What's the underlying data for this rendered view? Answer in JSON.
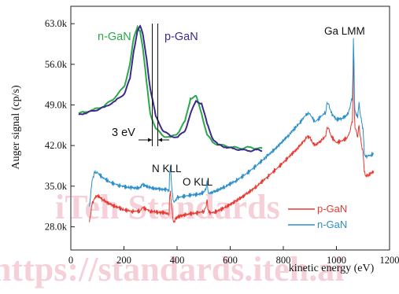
{
  "chart_data": {
    "type": "line",
    "xlabel": "kinetic energy (eV)",
    "ylabel": "Auger signal (cp/s)",
    "xlim": [
      0,
      1200
    ],
    "ylim": [
      24000,
      66000
    ],
    "x_ticks": [
      "0",
      "200",
      "400",
      "600",
      "800",
      "1000",
      "1200"
    ],
    "y_ticks": [
      "28.0k",
      "35.0k",
      "42.0k",
      "49.0k",
      "56.0k",
      "63.0k"
    ],
    "peak_labels": [
      "N KLL",
      "O KLL",
      "Ga LMM"
    ],
    "series": [
      {
        "name": "p-GaN",
        "color": "#e8382f",
        "x": [
          70,
          80,
          90,
          100,
          120,
          150,
          180,
          200,
          230,
          260,
          270,
          300,
          330,
          360,
          370,
          372,
          375,
          380,
          385,
          390,
          392,
          395,
          400,
          440,
          480,
          500,
          510,
          513,
          516,
          520,
          540,
          580,
          620,
          660,
          700,
          740,
          780,
          820,
          860,
          880,
          890,
          900,
          910,
          920,
          940,
          960,
          965,
          970,
          980,
          1000,
          1020,
          1040,
          1050,
          1055,
          1060,
          1062,
          1064,
          1066,
          1068,
          1070,
          1075,
          1080,
          1085,
          1090,
          1095,
          1100,
          1105,
          1110,
          1120,
          1130,
          1140
        ],
        "y": [
          28800,
          31800,
          33000,
          33400,
          32700,
          31800,
          31300,
          30900,
          30700,
          30700,
          31300,
          30700,
          30500,
          30400,
          30200,
          33200,
          34200,
          31200,
          29200,
          29000,
          29100,
          29400,
          29700,
          30200,
          30400,
          30700,
          31500,
          32700,
          31000,
          30400,
          30500,
          31300,
          32400,
          33600,
          35000,
          36600,
          38200,
          40000,
          41800,
          43000,
          43500,
          43400,
          42500,
          42000,
          42800,
          43600,
          45200,
          45000,
          43600,
          42500,
          42800,
          43300,
          44300,
          45500,
          45900,
          50000,
          59000,
          54000,
          47000,
          45000,
          44500,
          43500,
          45500,
          43500,
          42000,
          41000,
          37500,
          36800,
          36900,
          37200,
          37600
        ]
      },
      {
        "name": "n-GaN",
        "color": "#2a8ec9",
        "x": [
          70,
          80,
          90,
          100,
          120,
          150,
          180,
          200,
          230,
          260,
          270,
          300,
          330,
          360,
          370,
          372,
          375,
          380,
          385,
          390,
          392,
          395,
          400,
          440,
          480,
          500,
          510,
          513,
          516,
          520,
          540,
          580,
          620,
          660,
          700,
          740,
          780,
          820,
          860,
          880,
          890,
          900,
          910,
          920,
          940,
          960,
          965,
          970,
          980,
          1000,
          1020,
          1040,
          1050,
          1055,
          1060,
          1062,
          1064,
          1066,
          1068,
          1070,
          1075,
          1080,
          1085,
          1090,
          1095,
          1100,
          1105,
          1110,
          1120,
          1130,
          1140
        ],
        "y": [
          31500,
          36000,
          37300,
          37300,
          36500,
          35600,
          35200,
          34900,
          34700,
          34700,
          35300,
          34700,
          34500,
          34400,
          34200,
          37300,
          38500,
          34800,
          32600,
          32300,
          32400,
          32700,
          33000,
          33400,
          33600,
          33900,
          34700,
          36000,
          34400,
          33800,
          34000,
          34900,
          35900,
          37100,
          38600,
          40200,
          41900,
          43800,
          45800,
          47000,
          47600,
          47500,
          46600,
          46100,
          46900,
          47800,
          49400,
          49200,
          47600,
          46500,
          46700,
          47200,
          48300,
          49500,
          50300,
          54000,
          60500,
          56500,
          50000,
          48000,
          47500,
          46700,
          49500,
          47300,
          46000,
          45000,
          40700,
          40000,
          40200,
          40400,
          40600
        ]
      }
    ],
    "legend": {
      "position": "bottom-right",
      "entries": [
        {
          "name": "p-GaN",
          "color": "#e8382f"
        },
        {
          "name": "n-GaN",
          "color": "#2a8ec9"
        }
      ]
    },
    "inset": {
      "labels": {
        "n": "n-GaN",
        "p": "p-GaN",
        "width": "3 eV",
        "colors": {
          "n": "#2aa84a",
          "p": "#3c2a8c"
        }
      },
      "series": [
        {
          "name": "n-GaN",
          "color": "#2aa84a",
          "x": [
            0,
            0.03,
            0.08,
            0.14,
            0.2,
            0.25,
            0.28,
            0.3,
            0.32,
            0.335,
            0.35,
            0.37,
            0.39,
            0.42,
            0.46,
            0.5,
            0.54,
            0.58,
            0.61,
            0.64,
            0.67,
            0.7,
            0.73,
            0.76,
            0.8,
            0.84,
            0.88,
            0.93,
            0.97,
            1.0
          ],
          "y": [
            0.3,
            0.31,
            0.33,
            0.36,
            0.43,
            0.52,
            0.7,
            0.9,
            0.99,
            0.96,
            0.82,
            0.55,
            0.3,
            0.18,
            0.12,
            0.11,
            0.14,
            0.24,
            0.42,
            0.44,
            0.3,
            0.13,
            0.07,
            0.05,
            0.04,
            0.03,
            0.02,
            0.03,
            0.02,
            0.02
          ]
        },
        {
          "name": "p-GaN",
          "color": "#3c2a8c",
          "x": [
            0,
            0.03,
            0.08,
            0.14,
            0.2,
            0.25,
            0.28,
            0.3,
            0.32,
            0.335,
            0.35,
            0.37,
            0.39,
            0.42,
            0.46,
            0.5,
            0.54,
            0.58,
            0.61,
            0.64,
            0.67,
            0.7,
            0.73,
            0.76,
            0.8,
            0.84,
            0.88,
            0.93,
            0.97,
            1.0
          ],
          "y": [
            0.29,
            0.3,
            0.32,
            0.35,
            0.4,
            0.46,
            0.58,
            0.8,
            0.96,
            1.0,
            0.93,
            0.74,
            0.5,
            0.28,
            0.16,
            0.12,
            0.11,
            0.16,
            0.3,
            0.4,
            0.38,
            0.22,
            0.1,
            0.05,
            0.03,
            0.02,
            0.01,
            0.0,
            0.01,
            0.0
          ]
        }
      ]
    }
  },
  "watermark": {
    "line1": "iTeh Standards",
    "line2": "https://standards.iteh.ai"
  }
}
